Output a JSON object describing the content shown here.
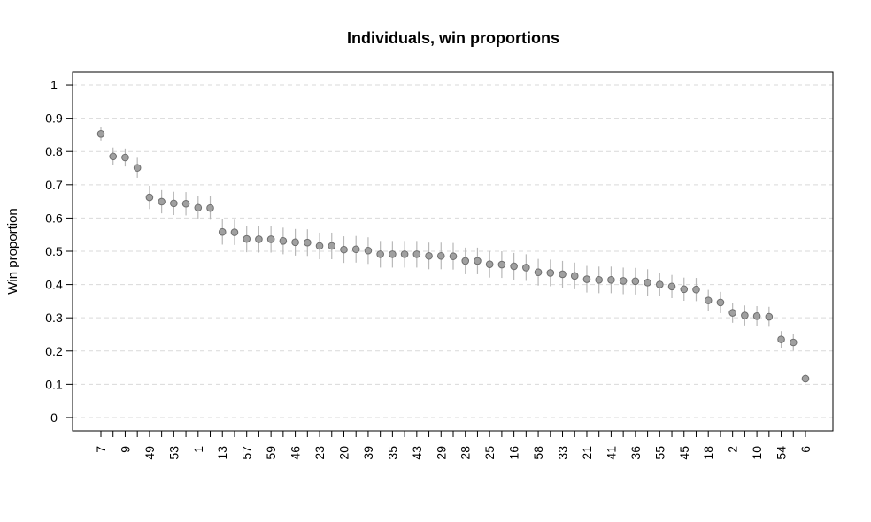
{
  "chart_data": {
    "type": "scatter",
    "title": "Individuals, win proportions",
    "xlabel": "",
    "ylabel": "Win proportion",
    "ylim": [
      -0.04,
      1.04
    ],
    "yticks": [
      0,
      0.1,
      0.2,
      0.3,
      0.4,
      0.5,
      0.6,
      0.7,
      0.8,
      0.9,
      1
    ],
    "ytick_labels": [
      "0",
      "0.1",
      "0.2",
      "0.3",
      "0.4",
      "0.5",
      "0.6",
      "0.7",
      "0.8",
      "0.9",
      "1"
    ],
    "grid": "horizontal dashed",
    "x_labels_shown": [
      "7",
      "9",
      "49",
      "53",
      "1",
      "13",
      "57",
      "59",
      "46",
      "23",
      "20",
      "39",
      "35",
      "43",
      "29",
      "28",
      "25",
      "16",
      "58",
      "33",
      "21",
      "41",
      "36",
      "55",
      "45",
      "18",
      "2",
      "10",
      "54",
      "6"
    ],
    "values": [
      0.853,
      0.785,
      0.782,
      0.751,
      0.662,
      0.649,
      0.644,
      0.643,
      0.631,
      0.63,
      0.558,
      0.557,
      0.537,
      0.536,
      0.536,
      0.531,
      0.527,
      0.526,
      0.516,
      0.516,
      0.505,
      0.506,
      0.502,
      0.491,
      0.491,
      0.491,
      0.491,
      0.486,
      0.486,
      0.485,
      0.471,
      0.471,
      0.461,
      0.46,
      0.455,
      0.451,
      0.437,
      0.435,
      0.431,
      0.426,
      0.416,
      0.414,
      0.414,
      0.411,
      0.41,
      0.406,
      0.4,
      0.394,
      0.386,
      0.385,
      0.352,
      0.346,
      0.315,
      0.307,
      0.305,
      0.303,
      0.235,
      0.226,
      0.117
    ],
    "errors": [
      0.02,
      0.027,
      0.027,
      0.03,
      0.035,
      0.035,
      0.035,
      0.035,
      0.035,
      0.035,
      0.038,
      0.038,
      0.04,
      0.04,
      0.04,
      0.04,
      0.04,
      0.04,
      0.04,
      0.04,
      0.04,
      0.04,
      0.04,
      0.04,
      0.04,
      0.04,
      0.04,
      0.04,
      0.04,
      0.04,
      0.04,
      0.04,
      0.04,
      0.04,
      0.04,
      0.04,
      0.04,
      0.04,
      0.04,
      0.04,
      0.04,
      0.04,
      0.04,
      0.04,
      0.04,
      0.04,
      0.035,
      0.035,
      0.035,
      0.035,
      0.032,
      0.032,
      0.03,
      0.03,
      0.03,
      0.03,
      0.025,
      0.025,
      0.012
    ],
    "colors": {
      "point_fill": "#a0a0a0",
      "point_stroke": "#6e6e6e",
      "errorbar": "#b8b8b8",
      "grid": "#d9d9d9",
      "axis": "#000000"
    }
  }
}
